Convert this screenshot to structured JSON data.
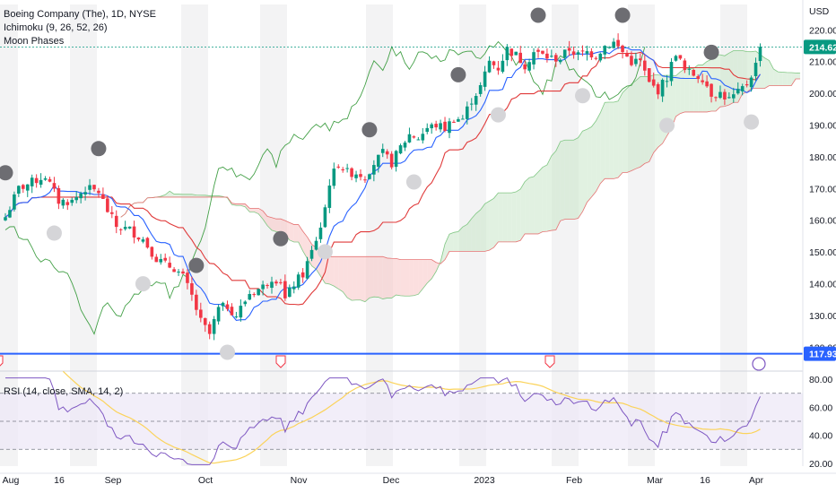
{
  "legend": {
    "title": "Boeing Company (The), 1D, NYSE",
    "ichimoku": "Ichimoku (9, 26, 52, 26)",
    "moon": "Moon Phases",
    "rsi": "RSI (14, close, SMA, 14, 2)"
  },
  "currency": "USD",
  "colors": {
    "up": "#089981",
    "down": "#f23645",
    "conversion": "#2962ff",
    "base": "#e03a3a",
    "lagging": "#43a047",
    "cloudBull": "#c8e6c9",
    "cloudBear": "#f8c5c5",
    "rsiLine": "#7e57c2",
    "rsiMA": "#fbd35a",
    "rsiBand": "#ede7f6",
    "lastPrice": "#089981",
    "hline": "#2962ff",
    "newMoon": "#6d6d72",
    "fullMoon": "#d5d5d8"
  },
  "chart_data": [
    {
      "type": "candlestick",
      "title": "Boeing Company (The), 1D, NYSE",
      "ylabel": "USD",
      "ylim": [
        115,
        228
      ],
      "x_tick_labels": [
        "Aug",
        "16",
        "Sep",
        "Oct",
        "Nov",
        "Dec",
        "2023",
        "Feb",
        "Mar",
        "16",
        "Apr"
      ],
      "y_tick_labels": [
        "220.00",
        "210.00",
        "200.00",
        "190.00",
        "180.00",
        "170.00",
        "160.00",
        "150.00",
        "140.00",
        "130.00",
        "120.00"
      ],
      "last_price": "214.62",
      "horizontal_line": "117.93",
      "close_anchors": [
        [
          0,
          161
        ],
        [
          3,
          170
        ],
        [
          6,
          172
        ],
        [
          9,
          174
        ],
        [
          12,
          166
        ],
        [
          15,
          166
        ],
        [
          18,
          170
        ],
        [
          21,
          169
        ],
        [
          23,
          163
        ],
        [
          25,
          158
        ],
        [
          28,
          157
        ],
        [
          31,
          154
        ],
        [
          34,
          148
        ],
        [
          36,
          146
        ],
        [
          38,
          145
        ],
        [
          40,
          142
        ],
        [
          42,
          136
        ],
        [
          44,
          128
        ],
        [
          46,
          124
        ],
        [
          48,
          132
        ],
        [
          50,
          133
        ],
        [
          52,
          130
        ],
        [
          55,
          137
        ],
        [
          58,
          139
        ],
        [
          60,
          142
        ],
        [
          62,
          141
        ],
        [
          63,
          135
        ],
        [
          65,
          140
        ],
        [
          67,
          143
        ],
        [
          69,
          150
        ],
        [
          71,
          158
        ],
        [
          72,
          164
        ],
        [
          73,
          172
        ],
        [
          75,
          178
        ],
        [
          77,
          175
        ],
        [
          79,
          175
        ],
        [
          81,
          174
        ],
        [
          83,
          178
        ],
        [
          85,
          181
        ],
        [
          87,
          178
        ],
        [
          89,
          183
        ],
        [
          91,
          187
        ],
        [
          93,
          186
        ],
        [
          95,
          189
        ],
        [
          97,
          190
        ],
        [
          99,
          189
        ],
        [
          101,
          192
        ],
        [
          103,
          192
        ],
        [
          105,
          198
        ],
        [
          107,
          202
        ],
        [
          109,
          210
        ],
        [
          111,
          208
        ],
        [
          113,
          214
        ],
        [
          115,
          212
        ],
        [
          117,
          209
        ],
        [
          119,
          213
        ],
        [
          121,
          212
        ],
        [
          123,
          211
        ],
        [
          125,
          211
        ],
        [
          127,
          214
        ],
        [
          129,
          212
        ],
        [
          131,
          213
        ],
        [
          133,
          212
        ],
        [
          135,
          215
        ],
        [
          137,
          216
        ],
        [
          139,
          213
        ],
        [
          141,
          210
        ],
        [
          143,
          210
        ],
        [
          145,
          203
        ],
        [
          147,
          201
        ],
        [
          149,
          205
        ],
        [
          151,
          213
        ],
        [
          153,
          207
        ],
        [
          155,
          206
        ],
        [
          157,
          205
        ],
        [
          159,
          200
        ],
        [
          161,
          200
        ],
        [
          163,
          198
        ],
        [
          165,
          200
        ],
        [
          167,
          203
        ],
        [
          169,
          209
        ],
        [
          170,
          214.62
        ]
      ],
      "new_moon_days": [
        0,
        21,
        43,
        62,
        82,
        102,
        120,
        139,
        159
      ],
      "full_moon_days": [
        11,
        31,
        50,
        72,
        92,
        111,
        130,
        149,
        168
      ]
    },
    {
      "type": "line",
      "title": "RSI (14, close, SMA, 14, 2)",
      "ylim": [
        18,
        82
      ],
      "y_tick_labels": [
        "80.00",
        "60.00",
        "40.00",
        "20.00"
      ],
      "bands": [
        70,
        50,
        30
      ]
    }
  ]
}
